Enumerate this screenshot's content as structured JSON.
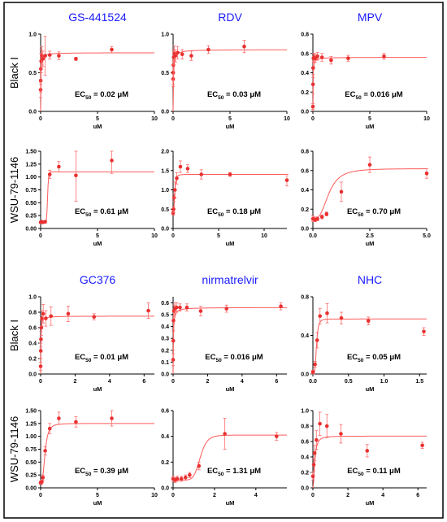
{
  "chart_data": [
    {
      "type": "scatter",
      "title": "GS-441524",
      "row_label": "Black I",
      "ec50": "0.02 μM",
      "xlabel": "uM",
      "xlim": [
        0,
        10
      ],
      "ylim": [
        0,
        1.0
      ],
      "xticks": [
        "0",
        "5",
        "10"
      ],
      "yticks": [
        "0.0",
        "0.5",
        "1.0"
      ],
      "fit": {
        "top": 0.76,
        "ec50": 0.02,
        "hill": 1
      },
      "points": [
        {
          "x": 0,
          "y": 0.28,
          "e": 0.1
        },
        {
          "x": 0.01,
          "y": 0.4,
          "e": 0.15
        },
        {
          "x": 0.02,
          "y": 0.55,
          "e": 0.2
        },
        {
          "x": 0.05,
          "y": 0.65,
          "e": 0.15
        },
        {
          "x": 0.1,
          "y": 0.72,
          "e": 0.12
        },
        {
          "x": 0.2,
          "y": 0.68,
          "e": 0.1
        },
        {
          "x": 0.4,
          "y": 0.72,
          "e": 0.25
        },
        {
          "x": 0.8,
          "y": 0.73,
          "e": 0.05
        },
        {
          "x": 1.6,
          "y": 0.72,
          "e": 0.05
        },
        {
          "x": 3.1,
          "y": 0.68,
          "e": 0.02
        },
        {
          "x": 6.25,
          "y": 0.8,
          "e": 0.04
        }
      ]
    },
    {
      "type": "scatter",
      "title": "RDV",
      "row_label": "",
      "ec50": "0.03 μM",
      "xlabel": "uM",
      "xlim": [
        0,
        10
      ],
      "ylim": [
        0,
        1.0
      ],
      "xticks": [
        "0",
        "5",
        "10"
      ],
      "yticks": [
        "0.0",
        "0.5",
        "1.0"
      ],
      "fit": {
        "top": 0.8,
        "ec50": 0.03,
        "hill": 1
      },
      "points": [
        {
          "x": 0,
          "y": 0.42,
          "e": 0.1
        },
        {
          "x": 0.01,
          "y": 0.5,
          "e": 0.15
        },
        {
          "x": 0.02,
          "y": 0.6,
          "e": 0.2
        },
        {
          "x": 0.05,
          "y": 0.7,
          "e": 0.1
        },
        {
          "x": 0.1,
          "y": 0.75,
          "e": 0.1
        },
        {
          "x": 0.2,
          "y": 0.72,
          "e": 0.08
        },
        {
          "x": 0.4,
          "y": 0.76,
          "e": 0.08
        },
        {
          "x": 0.8,
          "y": 0.74,
          "e": 0.06
        },
        {
          "x": 1.6,
          "y": 0.72,
          "e": 0.06
        },
        {
          "x": 3.1,
          "y": 0.8,
          "e": 0.05
        },
        {
          "x": 6.25,
          "y": 0.84,
          "e": 0.08
        }
      ]
    },
    {
      "type": "scatter",
      "title": "MPV",
      "row_label": "",
      "ec50": "0.016 μM",
      "xlabel": "uM",
      "xlim": [
        0,
        10
      ],
      "ylim": [
        0,
        0.8
      ],
      "xticks": [
        "0",
        "5",
        "10"
      ],
      "yticks": [
        "0.0",
        "0.2",
        "0.4",
        "0.6",
        "0.8"
      ],
      "fit": {
        "top": 0.56,
        "ec50": 0.016,
        "hill": 1
      },
      "points": [
        {
          "x": 0,
          "y": 0.05,
          "e": 0.03
        },
        {
          "x": 0.01,
          "y": 0.28,
          "e": 0.1
        },
        {
          "x": 0.02,
          "y": 0.45,
          "e": 0.1
        },
        {
          "x": 0.05,
          "y": 0.55,
          "e": 0.05
        },
        {
          "x": 0.1,
          "y": 0.56,
          "e": 0.04
        },
        {
          "x": 0.2,
          "y": 0.55,
          "e": 0.04
        },
        {
          "x": 0.4,
          "y": 0.57,
          "e": 0.04
        },
        {
          "x": 0.8,
          "y": 0.56,
          "e": 0.04
        },
        {
          "x": 1.6,
          "y": 0.53,
          "e": 0.04
        },
        {
          "x": 3.1,
          "y": 0.55,
          "e": 0.03
        },
        {
          "x": 6.25,
          "y": 0.57,
          "e": 0.03
        }
      ]
    },
    {
      "type": "scatter",
      "title": "",
      "row_label": "WSU-79-1146",
      "ec50": "0.61 μM",
      "xlabel": "uM",
      "xlim": [
        0,
        10
      ],
      "ylim": [
        0,
        1.5
      ],
      "xticks": [
        "0",
        "5",
        "10"
      ],
      "yticks": [
        "0.00",
        "0.25",
        "0.50",
        "0.75",
        "1.00",
        "1.25",
        "1.50"
      ],
      "fit": {
        "bottom": 0.12,
        "top": 1.1,
        "ec50": 0.61,
        "hill": 15
      },
      "points": [
        {
          "x": 0,
          "y": 0.12,
          "e": 0.02
        },
        {
          "x": 0.1,
          "y": 0.13,
          "e": 0.02
        },
        {
          "x": 0.2,
          "y": 0.12,
          "e": 0.02
        },
        {
          "x": 0.4,
          "y": 0.13,
          "e": 0.02
        },
        {
          "x": 0.8,
          "y": 1.05,
          "e": 0.08
        },
        {
          "x": 1.6,
          "y": 1.2,
          "e": 0.1
        },
        {
          "x": 3.1,
          "y": 1.03,
          "e": 0.5
        },
        {
          "x": 6.25,
          "y": 1.32,
          "e": 0.25
        }
      ]
    },
    {
      "type": "scatter",
      "title": "",
      "row_label": "",
      "ec50": "0.18 μM",
      "xlabel": "uM",
      "xlim": [
        0,
        12.5
      ],
      "ylim": [
        0,
        2.0
      ],
      "xticks": [
        "0",
        "5",
        "10"
      ],
      "yticks": [
        "0.0",
        "0.5",
        "1.0",
        "1.5",
        "2.0"
      ],
      "fit": {
        "bottom": 0.4,
        "top": 1.4,
        "ec50": 0.18,
        "hill": 3
      },
      "points": [
        {
          "x": 0,
          "y": 0.4,
          "e": 0.05
        },
        {
          "x": 0.05,
          "y": 0.5,
          "e": 0.08
        },
        {
          "x": 0.1,
          "y": 0.8,
          "e": 0.1
        },
        {
          "x": 0.2,
          "y": 1.0,
          "e": 0.2
        },
        {
          "x": 0.4,
          "y": 1.3,
          "e": 0.15
        },
        {
          "x": 0.8,
          "y": 1.6,
          "e": 0.15
        },
        {
          "x": 1.6,
          "y": 1.55,
          "e": 0.1
        },
        {
          "x": 3.1,
          "y": 1.4,
          "e": 0.12
        },
        {
          "x": 6.25,
          "y": 1.4,
          "e": 0.05
        },
        {
          "x": 12.5,
          "y": 1.25,
          "e": 0.15
        }
      ]
    },
    {
      "type": "scatter",
      "title": "",
      "row_label": "",
      "ec50": "0.70 μM",
      "xlabel": "uM",
      "xlim": [
        0,
        5
      ],
      "ylim": [
        0,
        0.8
      ],
      "xticks": [
        "0.0",
        "2.5",
        "5.0"
      ],
      "yticks": [
        "0.0",
        "0.2",
        "0.4",
        "0.6",
        "0.8"
      ],
      "fit": {
        "bottom": 0.1,
        "top": 0.62,
        "ec50": 0.7,
        "hill": 3
      },
      "points": [
        {
          "x": 0,
          "y": 0.1,
          "e": 0.03
        },
        {
          "x": 0.05,
          "y": 0.1,
          "e": 0.02
        },
        {
          "x": 0.1,
          "y": 0.09,
          "e": 0.02
        },
        {
          "x": 0.2,
          "y": 0.1,
          "e": 0.02
        },
        {
          "x": 0.4,
          "y": 0.12,
          "e": 0.02
        },
        {
          "x": 0.6,
          "y": 0.15,
          "e": 0.02
        },
        {
          "x": 1.25,
          "y": 0.38,
          "e": 0.1
        },
        {
          "x": 2.5,
          "y": 0.66,
          "e": 0.08
        },
        {
          "x": 5.0,
          "y": 0.57,
          "e": 0.05
        }
      ]
    },
    {
      "type": "scatter",
      "title": "GC376",
      "row_label": "Black I",
      "ec50": "0.01 μM",
      "xlabel": "uM",
      "xlim": [
        0,
        6.6
      ],
      "ylim": [
        0,
        1.0
      ],
      "xticks": [
        "0",
        "2",
        "4",
        "6"
      ],
      "yticks": [
        "0.0",
        "0.2",
        "0.4",
        "0.6",
        "0.8",
        "1.0"
      ],
      "fit": {
        "top": 0.75,
        "ec50": 0.01,
        "hill": 1
      },
      "points": [
        {
          "x": 0,
          "y": 0.1,
          "e": 0.05
        },
        {
          "x": 0.01,
          "y": 0.3,
          "e": 0.1
        },
        {
          "x": 0.02,
          "y": 0.45,
          "e": 0.1
        },
        {
          "x": 0.04,
          "y": 0.6,
          "e": 0.1
        },
        {
          "x": 0.08,
          "y": 0.72,
          "e": 0.1
        },
        {
          "x": 0.15,
          "y": 0.78,
          "e": 0.12
        },
        {
          "x": 0.3,
          "y": 0.72,
          "e": 0.1
        },
        {
          "x": 0.6,
          "y": 0.75,
          "e": 0.12
        },
        {
          "x": 1.6,
          "y": 0.78,
          "e": 0.1
        },
        {
          "x": 3.1,
          "y": 0.74,
          "e": 0.04
        },
        {
          "x": 6.25,
          "y": 0.82,
          "e": 0.1
        }
      ]
    },
    {
      "type": "scatter",
      "title": "nirmatrelvir",
      "row_label": "",
      "ec50": "0.016 μM",
      "xlabel": "uM",
      "xlim": [
        0,
        6.6
      ],
      "ylim": [
        0,
        0.65
      ],
      "xticks": [
        "0",
        "2",
        "4",
        "6"
      ],
      "yticks": [
        "0.0",
        "0.1",
        "0.2",
        "0.3",
        "0.4",
        "0.5",
        "0.6"
      ],
      "fit": {
        "top": 0.56,
        "ec50": 0.016,
        "hill": 1
      },
      "points": [
        {
          "x": 0,
          "y": 0.12,
          "e": 0.05
        },
        {
          "x": 0.01,
          "y": 0.28,
          "e": 0.08
        },
        {
          "x": 0.02,
          "y": 0.45,
          "e": 0.08
        },
        {
          "x": 0.05,
          "y": 0.53,
          "e": 0.05
        },
        {
          "x": 0.1,
          "y": 0.55,
          "e": 0.05
        },
        {
          "x": 0.2,
          "y": 0.56,
          "e": 0.04
        },
        {
          "x": 0.4,
          "y": 0.56,
          "e": 0.03
        },
        {
          "x": 0.8,
          "y": 0.56,
          "e": 0.03
        },
        {
          "x": 1.6,
          "y": 0.53,
          "e": 0.04
        },
        {
          "x": 3.1,
          "y": 0.55,
          "e": 0.03
        },
        {
          "x": 6.25,
          "y": 0.57,
          "e": 0.03
        }
      ]
    },
    {
      "type": "scatter",
      "title": "NHC",
      "row_label": "",
      "ec50": "0.05 μM",
      "xlabel": "uM",
      "xlim": [
        0,
        1.6
      ],
      "ylim": [
        0,
        0.8
      ],
      "xticks": [
        "0.0",
        "0.5",
        "1.0",
        "1.5"
      ],
      "yticks": [
        "0.0",
        "0.4",
        "0.8"
      ],
      "fit": {
        "top": 0.57,
        "ec50": 0.05,
        "hill": 4
      },
      "points": [
        {
          "x": 0,
          "y": 0.02,
          "e": 0.02
        },
        {
          "x": 0.03,
          "y": 0.1,
          "e": 0.03
        },
        {
          "x": 0.06,
          "y": 0.35,
          "e": 0.08
        },
        {
          "x": 0.1,
          "y": 0.6,
          "e": 0.08
        },
        {
          "x": 0.2,
          "y": 0.63,
          "e": 0.1
        },
        {
          "x": 0.4,
          "y": 0.58,
          "e": 0.06
        },
        {
          "x": 0.78,
          "y": 0.55,
          "e": 0.04
        },
        {
          "x": 1.56,
          "y": 0.44,
          "e": 0.04
        }
      ]
    },
    {
      "type": "scatter",
      "title": "",
      "row_label": "WSU-79-1146",
      "ec50": "0.39 μM",
      "xlabel": "uM",
      "xlim": [
        0,
        10
      ],
      "ylim": [
        0,
        1.5
      ],
      "xticks": [
        "0",
        "5",
        "10"
      ],
      "yticks": [
        "0.00",
        "0.25",
        "0.50",
        "0.75",
        "1.00",
        "1.25",
        "1.50"
      ],
      "fit": {
        "bottom": 0.1,
        "top": 1.25,
        "ec50": 0.39,
        "hill": 3
      },
      "points": [
        {
          "x": 0,
          "y": 0.1,
          "e": 0.03
        },
        {
          "x": 0.05,
          "y": 0.1,
          "e": 0.03
        },
        {
          "x": 0.1,
          "y": 0.12,
          "e": 0.03
        },
        {
          "x": 0.2,
          "y": 0.2,
          "e": 0.05
        },
        {
          "x": 0.4,
          "y": 0.72,
          "e": 0.08
        },
        {
          "x": 0.8,
          "y": 1.15,
          "e": 0.1
        },
        {
          "x": 1.6,
          "y": 1.35,
          "e": 0.12
        },
        {
          "x": 3.1,
          "y": 1.28,
          "e": 0.1
        },
        {
          "x": 6.25,
          "y": 1.35,
          "e": 0.15
        }
      ]
    },
    {
      "type": "scatter",
      "title": "",
      "row_label": "",
      "ec50": "1.31 μM",
      "xlabel": "uM",
      "xlim": [
        0,
        5.5
      ],
      "ylim": [
        0,
        0.6
      ],
      "xticks": [
        "0",
        "2",
        "4"
      ],
      "yticks": [
        "0.0",
        "0.2",
        "0.4",
        "0.6"
      ],
      "fit": {
        "bottom": 0.06,
        "top": 0.41,
        "ec50": 1.31,
        "hill": 8
      },
      "points": [
        {
          "x": 0,
          "y": 0.07,
          "e": 0.02
        },
        {
          "x": 0.1,
          "y": 0.06,
          "e": 0.02
        },
        {
          "x": 0.2,
          "y": 0.07,
          "e": 0.02
        },
        {
          "x": 0.4,
          "y": 0.07,
          "e": 0.02
        },
        {
          "x": 0.6,
          "y": 0.08,
          "e": 0.02
        },
        {
          "x": 0.8,
          "y": 0.1,
          "e": 0.02
        },
        {
          "x": 1.25,
          "y": 0.17,
          "e": 0.03
        },
        {
          "x": 2.5,
          "y": 0.42,
          "e": 0.12
        },
        {
          "x": 5.0,
          "y": 0.4,
          "e": 0.03
        }
      ]
    },
    {
      "type": "scatter",
      "title": "",
      "row_label": "",
      "ec50": "0.11 μM",
      "xlabel": "uM",
      "xlim": [
        0,
        6.5
      ],
      "ylim": [
        0,
        1.0
      ],
      "xticks": [
        "0",
        "2",
        "4",
        "6"
      ],
      "yticks": [
        "0.0",
        "0.2",
        "0.4",
        "0.6",
        "0.8",
        "1.0"
      ],
      "fit": {
        "top": 0.67,
        "ec50": 0.11,
        "hill": 2
      },
      "points": [
        {
          "x": 0,
          "y": 0.15,
          "e": 0.05
        },
        {
          "x": 0.05,
          "y": 0.3,
          "e": 0.08
        },
        {
          "x": 0.1,
          "y": 0.45,
          "e": 0.1
        },
        {
          "x": 0.2,
          "y": 0.62,
          "e": 0.12
        },
        {
          "x": 0.4,
          "y": 0.83,
          "e": 0.15
        },
        {
          "x": 0.8,
          "y": 0.8,
          "e": 0.15
        },
        {
          "x": 1.6,
          "y": 0.7,
          "e": 0.12
        },
        {
          "x": 3.1,
          "y": 0.48,
          "e": 0.08
        },
        {
          "x": 6.25,
          "y": 0.55,
          "e": 0.04
        }
      ]
    }
  ]
}
